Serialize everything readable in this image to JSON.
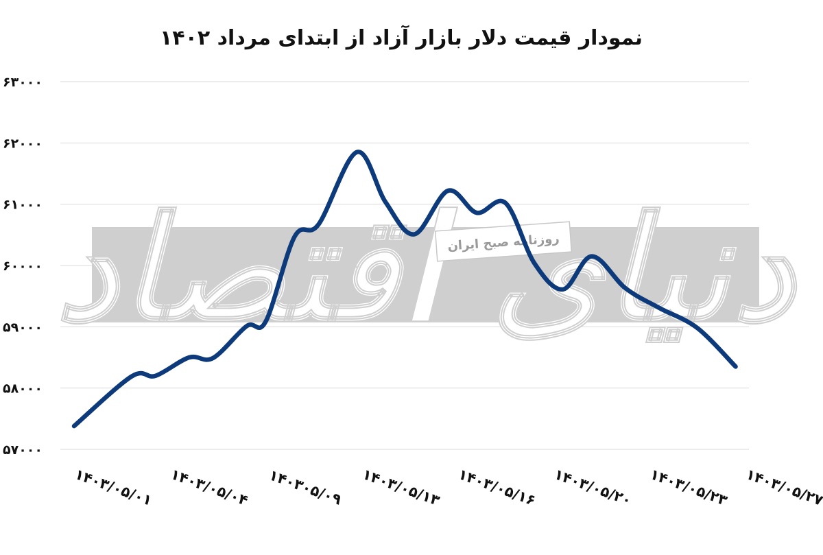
{
  "chart_data": {
    "type": "line",
    "title": "نمودار قیمت دلار بازار آزاد از ابتدای مرداد ۱۴۰۲",
    "xlabel": "",
    "ylabel": "",
    "ylim": [
      57000,
      63000
    ],
    "y_ticks": [
      "۵۷۰۰۰",
      "۵۸۰۰۰",
      "۵۹۰۰۰",
      "۶۰۰۰۰",
      "۶۱۰۰۰",
      "۶۲۰۰۰",
      "۶۳۰۰۰"
    ],
    "y_tick_values": [
      57000,
      58000,
      59000,
      60000,
      61000,
      62000,
      63000
    ],
    "x_ticks": [
      "۱۴۰۳/۰۵/۰۱",
      "۱۴۰۳/۰۵/۰۴",
      "۱۴۰۳۰۵/۰۹",
      "۱۴۰۳/۰۵/۱۳",
      "۱۴۰۳/۰۵/۱۶",
      "۱۴۰۳/۰۵/۲۰",
      "۱۴۰۳/۰۵/۲۳",
      "۱۴۰۳/۰۵/۲۷"
    ],
    "grid": true,
    "legend": "none",
    "series": [
      {
        "color": "#0c3a7a",
        "points": [
          {
            "x": 0,
            "y": 57380
          },
          {
            "x": 0.6,
            "y": 58190
          },
          {
            "x": 0.85,
            "y": 58200
          },
          {
            "x": 1.2,
            "y": 58500
          },
          {
            "x": 1.45,
            "y": 58490
          },
          {
            "x": 1.8,
            "y": 59010
          },
          {
            "x": 2.0,
            "y": 59090
          },
          {
            "x": 2.3,
            "y": 60470
          },
          {
            "x": 2.55,
            "y": 60670
          },
          {
            "x": 2.95,
            "y": 61850
          },
          {
            "x": 3.25,
            "y": 61030
          },
          {
            "x": 3.55,
            "y": 60510
          },
          {
            "x": 3.9,
            "y": 61220
          },
          {
            "x": 4.2,
            "y": 60860
          },
          {
            "x": 4.5,
            "y": 61020
          },
          {
            "x": 4.8,
            "y": 60040
          },
          {
            "x": 5.1,
            "y": 59610
          },
          {
            "x": 5.4,
            "y": 60150
          },
          {
            "x": 5.75,
            "y": 59630
          },
          {
            "x": 6.1,
            "y": 59310
          },
          {
            "x": 6.5,
            "y": 58980
          },
          {
            "x": 6.9,
            "y": 58350
          }
        ]
      }
    ]
  },
  "watermark": {
    "brand": "دنیای اقتصاد",
    "label": "روزنامه صبح ایران",
    "band_color": "#cfcfcf"
  }
}
